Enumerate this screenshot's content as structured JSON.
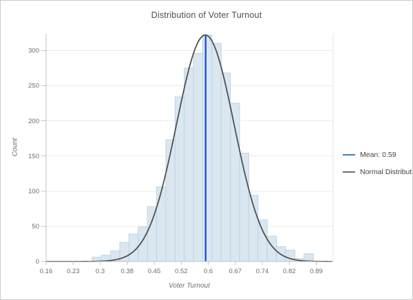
{
  "window": {
    "background": "#ffffff",
    "border_color": "#cacaca"
  },
  "chart_data": {
    "type": "bar",
    "subtype": "histogram",
    "title": "Distribution of Voter Turnout",
    "xlabel": "Voter Turnout",
    "ylabel": "Count",
    "grid": "horizontal",
    "legend_position": "right-middle",
    "xlim": [
      0.16,
      0.939
    ],
    "ylim": [
      0,
      323.8
    ],
    "x_ticks": [
      {
        "label": "0.16",
        "value": 0.16
      },
      {
        "label": "0.23",
        "value": 0.2333
      },
      {
        "label": "0.3",
        "value": 0.3067
      },
      {
        "label": "0.38",
        "value": 0.38
      },
      {
        "label": "0.45",
        "value": 0.4533
      },
      {
        "label": "0.52",
        "value": 0.5267
      },
      {
        "label": "0.6",
        "value": 0.6
      },
      {
        "label": "0.67",
        "value": 0.6733
      },
      {
        "label": "0.74",
        "value": 0.7467
      },
      {
        "label": "0.82",
        "value": 0.82
      },
      {
        "label": "0.89",
        "value": 0.8933
      }
    ],
    "y_ticks": [
      {
        "label": "0",
        "value": 0
      },
      {
        "label": "50",
        "value": 50
      },
      {
        "label": "100",
        "value": 100
      },
      {
        "label": "150",
        "value": 150
      },
      {
        "label": "200",
        "value": 200
      },
      {
        "label": "250",
        "value": 250
      },
      {
        "label": "300",
        "value": 300
      }
    ],
    "histogram": {
      "bin_start": 0.16,
      "bin_width": 0.025,
      "counts": [
        0,
        0,
        0,
        0,
        0,
        6,
        9,
        15,
        27,
        39,
        49,
        78,
        106,
        173,
        234,
        275,
        296,
        322,
        310,
        268,
        225,
        154,
        94,
        59,
        36,
        21,
        16,
        4,
        11,
        0
      ]
    },
    "normal_curve": {
      "label": "Normal Distribution",
      "mu": 0.592,
      "sigma": 0.078,
      "peak": 322,
      "color": "#4f4f4f"
    },
    "mean_line": {
      "label": "Mean: 0.59",
      "value": 0.593,
      "color": "#1a55d4"
    },
    "style": {
      "bar_fill": "#dae7f0",
      "bar_stroke": "#bcd3e4",
      "grid_color": "#ebebeb",
      "axis_color": "#c2c2c2",
      "frame_color": "#e3e3e3",
      "tick_color": "#c6c6c6",
      "tick_label_color": "#6b6b6b",
      "title_color": "#4d4d4d",
      "axis_title_color": "#6e6e6e"
    }
  },
  "legend": {
    "items": [
      {
        "label": "Mean: 0.59",
        "color": "#4477cc"
      },
      {
        "label": "Normal Distribution",
        "color": "#6e6e6e"
      }
    ]
  }
}
